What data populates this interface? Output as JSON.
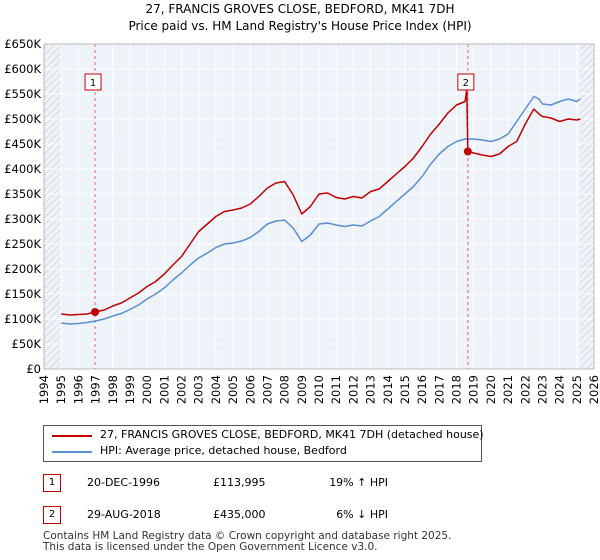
{
  "title_line1": "27, FRANCIS GROVES CLOSE, BEDFORD, MK41 7DH",
  "title_line2": "Price paid vs. HM Land Registry's House Price Index (HPI)",
  "chart_data": {
    "type": "line",
    "title": "27, FRANCIS GROVES CLOSE, BEDFORD, MK41 7DH — Price paid vs. HM Land Registry's House Price Index (HPI)",
    "xlabel": "",
    "ylabel": "",
    "xlim": [
      1994,
      2026
    ],
    "ylim": [
      0,
      650000
    ],
    "yticks": [
      0,
      50000,
      100000,
      150000,
      200000,
      250000,
      300000,
      350000,
      400000,
      450000,
      500000,
      550000,
      600000,
      650000
    ],
    "ytick_labels": [
      "£0",
      "£50K",
      "£100K",
      "£150K",
      "£200K",
      "£250K",
      "£300K",
      "£350K",
      "£400K",
      "£450K",
      "£500K",
      "£550K",
      "£600K",
      "£650K"
    ],
    "xticks": [
      1994,
      1995,
      1996,
      1997,
      1998,
      1999,
      2000,
      2001,
      2002,
      2003,
      2004,
      2005,
      2006,
      2007,
      2008,
      2009,
      2010,
      2011,
      2012,
      2013,
      2014,
      2015,
      2016,
      2017,
      2018,
      2019,
      2020,
      2021,
      2022,
      2023,
      2024,
      2025,
      2026
    ],
    "grid": true,
    "hatched_ranges": [
      [
        1994,
        1995
      ],
      [
        2025.2,
        2026
      ]
    ],
    "series": [
      {
        "name": "27, FRANCIS GROVES CLOSE, BEDFORD, MK41 7DH (detached house)",
        "color": "#c00000",
        "x": [
          1995.0,
          1995.5,
          1996.0,
          1996.5,
          1996.97,
          1997.5,
          1998.0,
          1998.5,
          1999.0,
          1999.5,
          2000.0,
          2000.5,
          2001.0,
          2001.5,
          2002.0,
          2002.5,
          2003.0,
          2003.5,
          2004.0,
          2004.5,
          2005.0,
          2005.5,
          2006.0,
          2006.5,
          2007.0,
          2007.5,
          2008.0,
          2008.5,
          2009.0,
          2009.5,
          2010.0,
          2010.5,
          2011.0,
          2011.5,
          2012.0,
          2012.5,
          2013.0,
          2013.5,
          2014.0,
          2014.5,
          2015.0,
          2015.5,
          2016.0,
          2016.5,
          2017.0,
          2017.5,
          2018.0,
          2018.5,
          2018.6,
          2018.66,
          2019.0,
          2019.5,
          2020.0,
          2020.5,
          2021.0,
          2021.5,
          2022.0,
          2022.5,
          2022.8,
          2023.0,
          2023.5,
          2024.0,
          2024.5,
          2025.0,
          2025.2
        ],
        "values": [
          110000,
          108000,
          109000,
          110000,
          113995,
          118000,
          126000,
          132000,
          142000,
          152000,
          165000,
          175000,
          190000,
          208000,
          225000,
          250000,
          275000,
          290000,
          305000,
          315000,
          318000,
          322000,
          330000,
          345000,
          362000,
          372000,
          375000,
          348000,
          310000,
          325000,
          350000,
          352000,
          343000,
          340000,
          345000,
          342000,
          355000,
          360000,
          375000,
          390000,
          405000,
          422000,
          445000,
          470000,
          490000,
          512000,
          528000,
          535000,
          560000,
          435000,
          432000,
          428000,
          425000,
          430000,
          445000,
          455000,
          490000,
          520000,
          510000,
          505000,
          502000,
          495000,
          500000,
          498000,
          500000
        ]
      },
      {
        "name": "HPI: Average price, detached house, Bedford",
        "color": "#5b8fd0",
        "x": [
          1995.0,
          1995.5,
          1996.0,
          1996.5,
          1997.0,
          1997.5,
          1998.0,
          1998.5,
          1999.0,
          1999.5,
          2000.0,
          2000.5,
          2001.0,
          2001.5,
          2002.0,
          2002.5,
          2003.0,
          2003.5,
          2004.0,
          2004.5,
          2005.0,
          2005.5,
          2006.0,
          2006.5,
          2007.0,
          2007.5,
          2008.0,
          2008.5,
          2009.0,
          2009.5,
          2010.0,
          2010.5,
          2011.0,
          2011.5,
          2012.0,
          2012.5,
          2013.0,
          2013.5,
          2014.0,
          2014.5,
          2015.0,
          2015.5,
          2016.0,
          2016.5,
          2017.0,
          2017.5,
          2018.0,
          2018.5,
          2019.0,
          2019.5,
          2020.0,
          2020.5,
          2021.0,
          2021.5,
          2022.0,
          2022.5,
          2022.8,
          2023.0,
          2023.5,
          2024.0,
          2024.5,
          2025.0,
          2025.2
        ],
        "values": [
          92000,
          90000,
          91000,
          93000,
          96000,
          100000,
          106000,
          111000,
          119000,
          128000,
          140000,
          150000,
          162000,
          178000,
          192000,
          208000,
          222000,
          232000,
          243000,
          250000,
          252000,
          256000,
          263000,
          275000,
          290000,
          296000,
          298000,
          282000,
          255000,
          268000,
          290000,
          292000,
          288000,
          285000,
          288000,
          286000,
          296000,
          305000,
          320000,
          335000,
          350000,
          365000,
          385000,
          410000,
          430000,
          445000,
          455000,
          460000,
          460000,
          458000,
          455000,
          460000,
          470000,
          495000,
          520000,
          545000,
          540000,
          530000,
          528000,
          535000,
          540000,
          535000,
          540000
        ]
      }
    ],
    "annotations": [
      {
        "label": "1",
        "x": 1996.97,
        "y": 113995
      },
      {
        "label": "2",
        "x": 2018.66,
        "y": 435000
      }
    ],
    "legend_position": "below"
  },
  "legend": {
    "property_label": "27, FRANCIS GROVES CLOSE, BEDFORD, MK41 7DH (detached house)",
    "hpi_label": "HPI: Average price, detached house, Bedford",
    "property_color": "#c00000",
    "hpi_color": "#5b8fd0"
  },
  "transactions": [
    {
      "num": "1",
      "date": "20-DEC-1996",
      "price": "£113,995",
      "hpi": "19% ↑ HPI"
    },
    {
      "num": "2",
      "date": "29-AUG-2018",
      "price": "£435,000",
      "hpi": "6% ↓ HPI"
    }
  ],
  "footer": {
    "line1": "Contains HM Land Registry data © Crown copyright and database right 2025.",
    "line2": "This data is licensed under the Open Government Licence v3.0."
  }
}
